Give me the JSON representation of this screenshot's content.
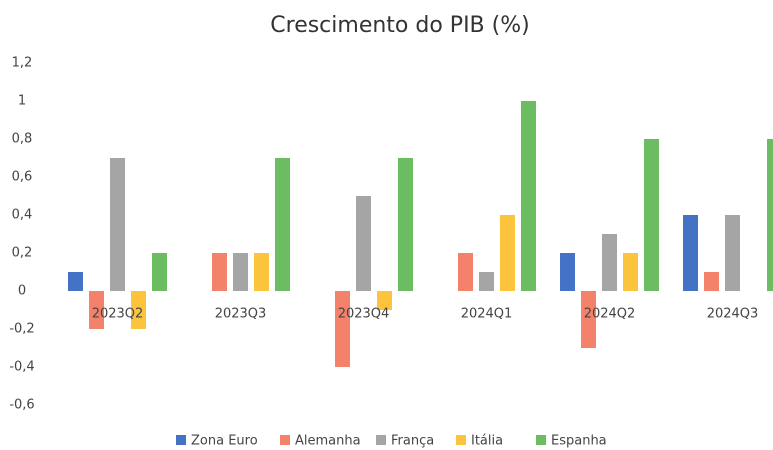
{
  "chart_data": {
    "type": "bar",
    "title": "Crescimento do PIB (%)",
    "categories": [
      "2023Q2",
      "2023Q3",
      "2023Q4",
      "2024Q1",
      "2024Q2",
      "2024Q3"
    ],
    "series": [
      {
        "name": "Zona Euro",
        "color": "#4472c4",
        "values": [
          0.1,
          0,
          0,
          0,
          0.2,
          0.4
        ]
      },
      {
        "name": "Alemanha",
        "color": "#f4826a",
        "values": [
          -0.2,
          0.2,
          -0.4,
          0.2,
          -0.3,
          0.1
        ]
      },
      {
        "name": "França",
        "color": "#a5a5a5",
        "values": [
          0.7,
          0.2,
          0.5,
          0.1,
          0.3,
          0.4
        ]
      },
      {
        "name": "Itália",
        "color": "#fcc43c",
        "values": [
          -0.2,
          0.2,
          -0.1,
          0.4,
          0.2,
          0
        ]
      },
      {
        "name": "Espanha",
        "color": "#6cbd62",
        "values": [
          0.2,
          0.7,
          0.7,
          1.0,
          0.8,
          0.8
        ]
      }
    ],
    "ylim": [
      -0.6,
      1.2
    ],
    "yticks": [
      {
        "value": 1.2,
        "label": "1,2"
      },
      1,
      {
        "value": 0.8,
        "label": "0,8"
      },
      {
        "value": 0.6,
        "label": "0,6"
      },
      {
        "value": 0.4,
        "label": "0,4"
      },
      {
        "value": 0.2,
        "label": "0,2"
      },
      0,
      {
        "value": -0.2,
        "label": "-0,2"
      },
      {
        "value": -0.4,
        "label": "-0,4"
      },
      {
        "value": -0.6,
        "label": "-0,6"
      }
    ],
    "grid": false,
    "legend": "bottom"
  }
}
